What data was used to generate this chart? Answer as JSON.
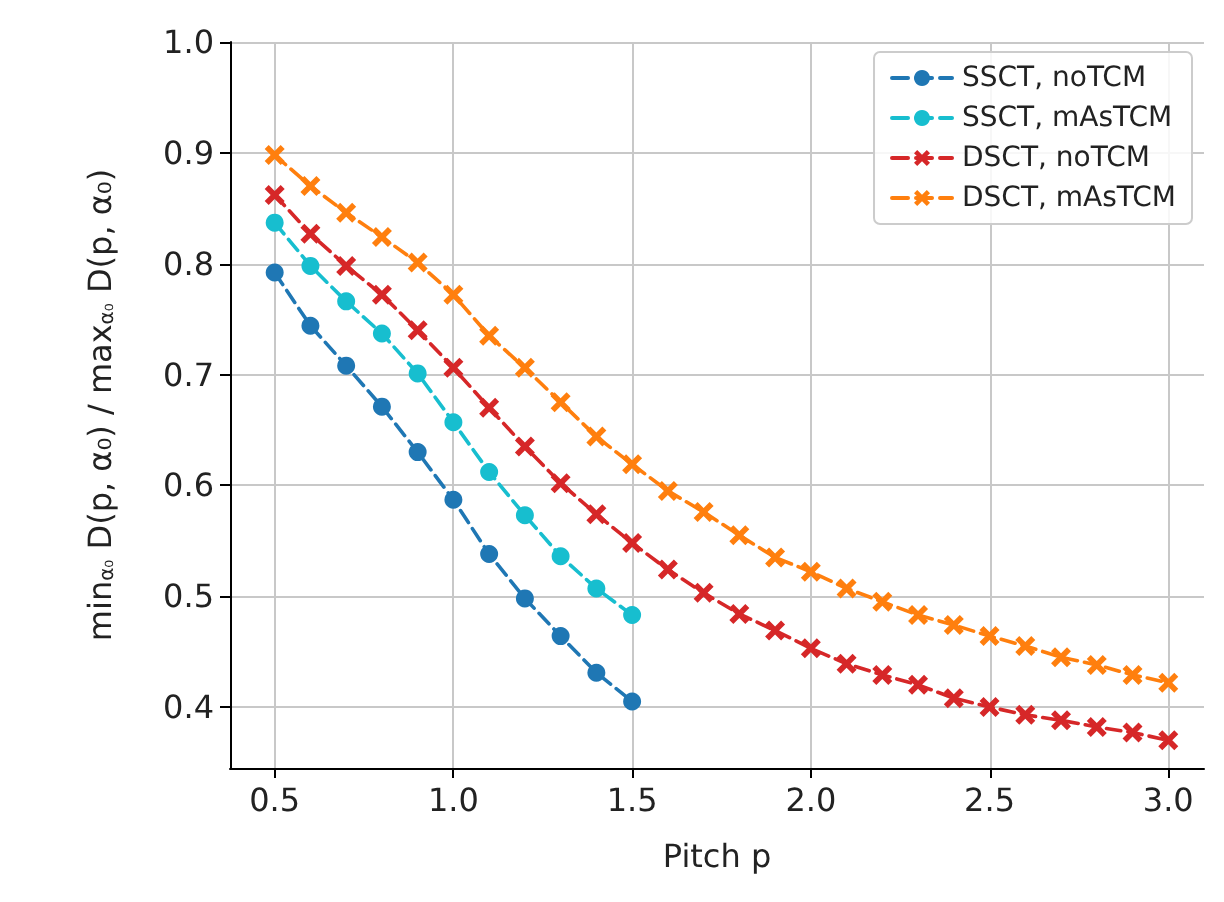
{
  "chart_data": {
    "type": "line",
    "xlabel": "Pitch p",
    "ylabel": "min$_{α₀}$ D(p, α₀) / max$_{α₀}$ D(p, α₀)",
    "xlim": [
      0.375,
      3.1
    ],
    "xticks": [
      0.5,
      {
        "value": 1,
        "label": "1.0"
      },
      1.5,
      {
        "value": 2,
        "label": "2.0"
      },
      2.5,
      {
        "value": 3,
        "label": "3.0"
      }
    ],
    "ylim": [
      0.345,
      1.0
    ],
    "yticks": [
      0.4,
      0.5,
      0.6,
      0.7,
      0.8,
      0.9,
      {
        "value": 1,
        "label": "1.0"
      }
    ],
    "grid": true,
    "legend": "top right",
    "line_style": "dashed",
    "series": [
      {
        "name": "SSCT, noTCM",
        "color": "#1f77b4",
        "marker": "circle",
        "x": [
          0.5,
          0.6,
          0.7,
          0.8,
          0.9,
          1.0,
          1.1,
          1.2,
          1.3,
          1.4,
          1.5
        ],
        "values": [
          0.792,
          0.744,
          0.708,
          0.671,
          0.63,
          0.587,
          0.538,
          0.498,
          0.464,
          0.431,
          0.405
        ]
      },
      {
        "name": "SSCT, mAsTCM",
        "color": "#17becf",
        "marker": "circle",
        "x": [
          0.5,
          0.6,
          0.7,
          0.8,
          0.9,
          1.0,
          1.1,
          1.2,
          1.3,
          1.4,
          1.5
        ],
        "values": [
          0.837,
          0.798,
          0.766,
          0.737,
          0.701,
          0.657,
          0.612,
          0.573,
          0.536,
          0.507,
          0.483
        ]
      },
      {
        "name": "DSCT, noTCM",
        "color": "#d62728",
        "marker": "cross",
        "x": [
          0.5,
          0.6,
          0.7,
          0.8,
          0.9,
          1.0,
          1.1,
          1.2,
          1.3,
          1.4,
          1.5,
          1.6,
          1.7,
          1.8,
          1.9,
          2.0,
          2.1,
          2.2,
          2.3,
          2.4,
          2.5,
          2.6,
          2.7,
          2.8,
          2.9,
          3.0
        ],
        "values": [
          0.862,
          0.827,
          0.798,
          0.772,
          0.74,
          0.706,
          0.67,
          0.635,
          0.602,
          0.574,
          0.548,
          0.524,
          0.503,
          0.484,
          0.469,
          0.453,
          0.439,
          0.429,
          0.42,
          0.408,
          0.4,
          0.393,
          0.388,
          0.382,
          0.377,
          0.37
        ]
      },
      {
        "name": "DSCT, mAsTCM",
        "color": "#ff7f0e",
        "marker": "cross",
        "x": [
          0.5,
          0.6,
          0.7,
          0.8,
          0.9,
          1.0,
          1.1,
          1.2,
          1.3,
          1.4,
          1.5,
          1.6,
          1.7,
          1.8,
          1.9,
          2.0,
          2.1,
          2.2,
          2.3,
          2.4,
          2.5,
          2.6,
          2.7,
          2.8,
          2.9,
          3.0
        ],
        "values": [
          0.898,
          0.87,
          0.846,
          0.824,
          0.801,
          0.772,
          0.735,
          0.706,
          0.675,
          0.644,
          0.619,
          0.595,
          0.576,
          0.555,
          0.535,
          0.522,
          0.507,
          0.495,
          0.483,
          0.474,
          0.464,
          0.455,
          0.445,
          0.438,
          0.429,
          0.422
        ]
      }
    ]
  }
}
